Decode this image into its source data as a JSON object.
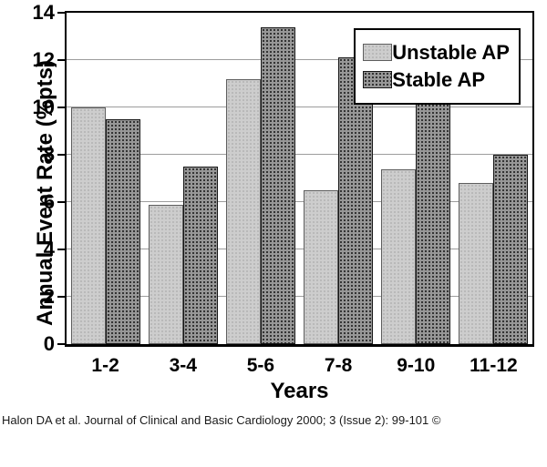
{
  "caption": "Halon DA et al. Journal of Clinical and Basic Cardiology 2000; 3 (Issue 2): 99-101 ©",
  "colors": {
    "background": "#ffffff",
    "unstable_bar_fill": "#cdcdcd",
    "unstable_bar_dot": "#b2b2b2",
    "stable_bar_fill": "#979797",
    "stable_bar_dot": "#343434",
    "gridline": "#9c9c9c",
    "axis": "#000000"
  },
  "chart_data": {
    "type": "bar",
    "title": "",
    "xlabel": "Years",
    "ylabel": "Annual Event Rate (%pts)",
    "categories": [
      "1-2",
      "3-4",
      "5-6",
      "7-8",
      "9-10",
      "11-12"
    ],
    "series": [
      {
        "name": "Unstable AP",
        "values": [
          10.0,
          5.9,
          11.2,
          6.5,
          7.4,
          6.8
        ]
      },
      {
        "name": "Stable AP",
        "values": [
          9.5,
          7.5,
          13.4,
          12.1,
          10.2,
          8.0
        ]
      }
    ],
    "ylim": [
      0,
      14
    ],
    "yticks": [
      0,
      2,
      4,
      6,
      8,
      10,
      12,
      14
    ],
    "grid": "horizontal",
    "legend_position": "top-right"
  }
}
